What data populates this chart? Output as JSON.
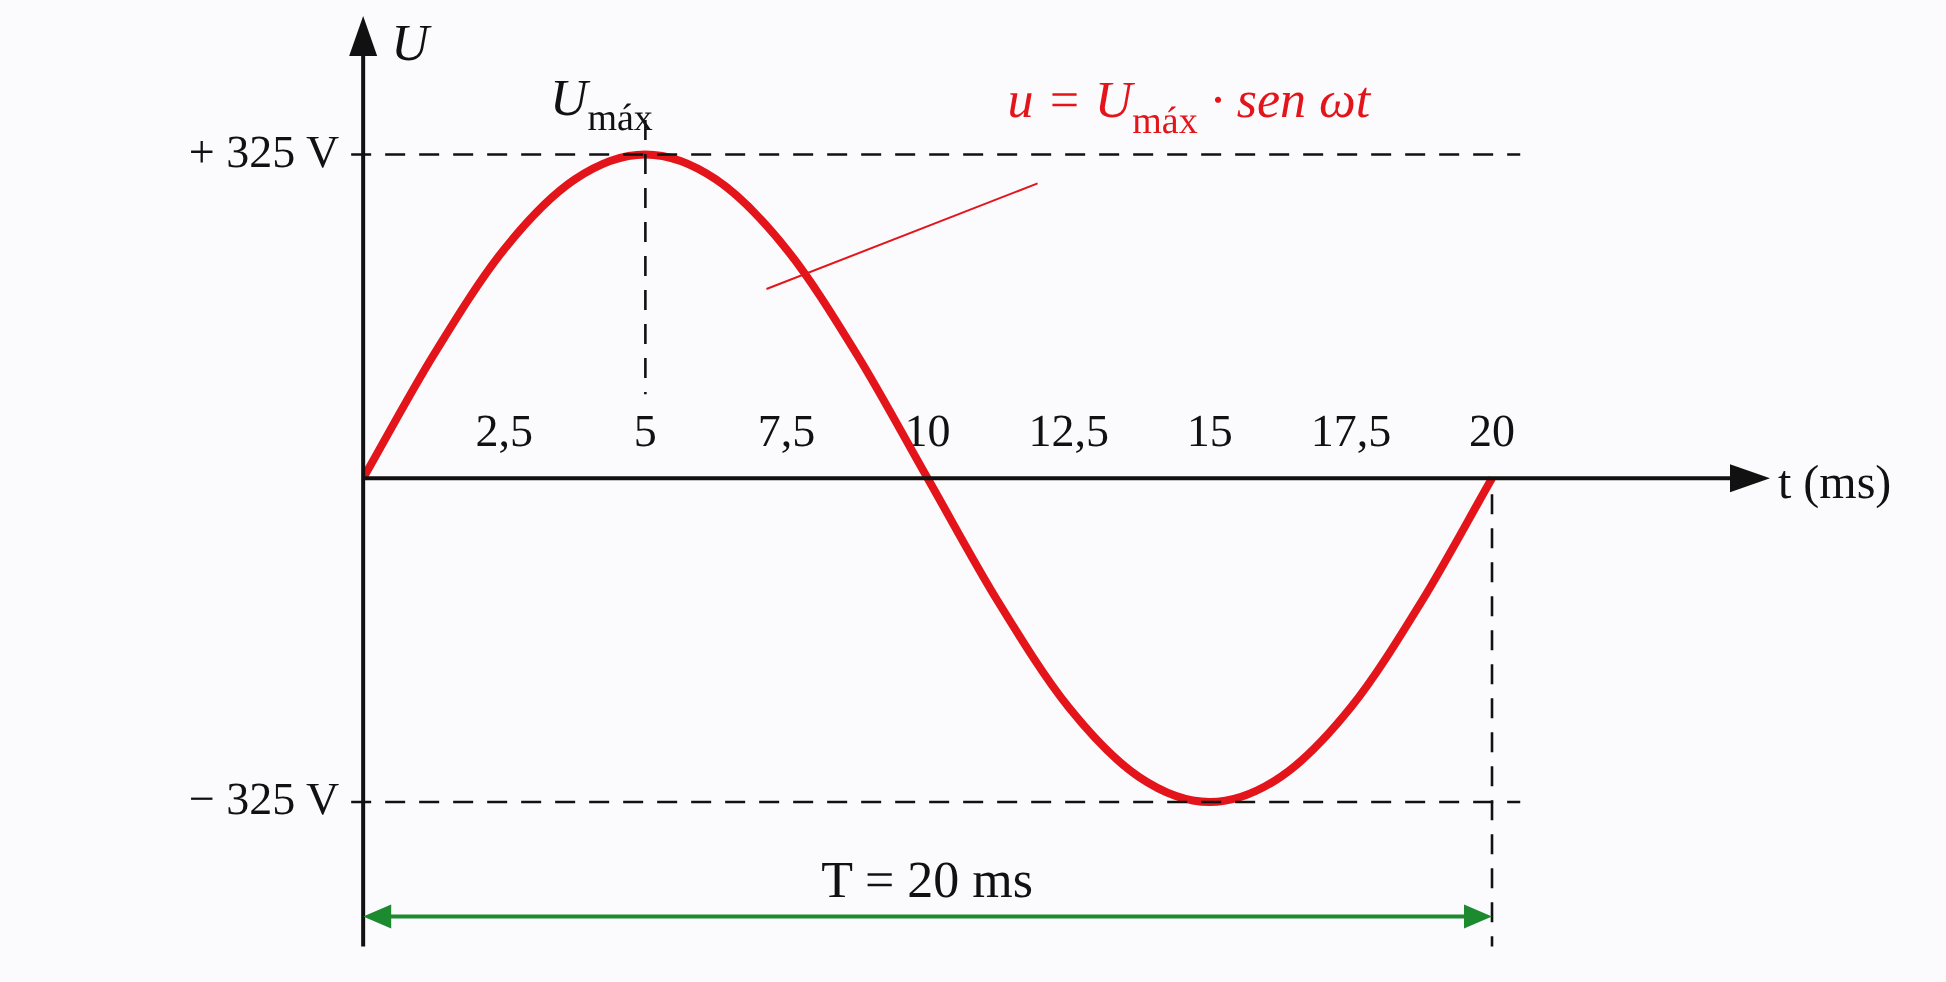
{
  "chart_data": {
    "type": "line",
    "xlabel": "t (ms)",
    "ylabel": "U",
    "x": [
      0,
      1.25,
      2.5,
      3.75,
      5,
      6.25,
      7.5,
      8.75,
      10,
      11.25,
      12.5,
      13.75,
      15,
      16.25,
      17.5,
      18.75,
      20
    ],
    "series": [
      {
        "color": "#e3151b",
        "values": [
          0,
          124,
          230,
          300,
          325,
          300,
          230,
          124,
          0,
          -124,
          -230,
          -300,
          -325,
          -300,
          -230,
          -124,
          0
        ]
      }
    ],
    "xlim": [
      0,
      24.5
    ],
    "ylim": [
      -470,
      440
    ],
    "xticks": [
      {
        "value": 2.5,
        "label": "2,5"
      },
      5,
      {
        "value": 7.5,
        "label": "7,5"
      },
      10,
      {
        "value": 12.5,
        "label": "12,5"
      },
      15,
      {
        "value": 17.5,
        "label": "17,5"
      },
      20
    ],
    "yticks": [
      {
        "value": -325,
        "label": "− 325 V"
      },
      {
        "value": 325,
        "label": "+ 325 V"
      }
    ],
    "ref_lines": [
      {
        "axis": "y",
        "value": 325,
        "line_style": "dashed"
      },
      {
        "axis": "y",
        "value": -325,
        "line_style": "dashed"
      },
      {
        "axis": "x",
        "value": 5,
        "line_style": "dashed"
      },
      {
        "axis": "x",
        "value": 20,
        "line_style": "dashed"
      }
    ],
    "annotations": [
      "U$_{máx}$",
      "u = U$_{máx}$ · sen ωt",
      "T = 20 ms"
    ],
    "grid": false,
    "legend": false,
    "marker": "none",
    "line_style": "solid"
  }
}
